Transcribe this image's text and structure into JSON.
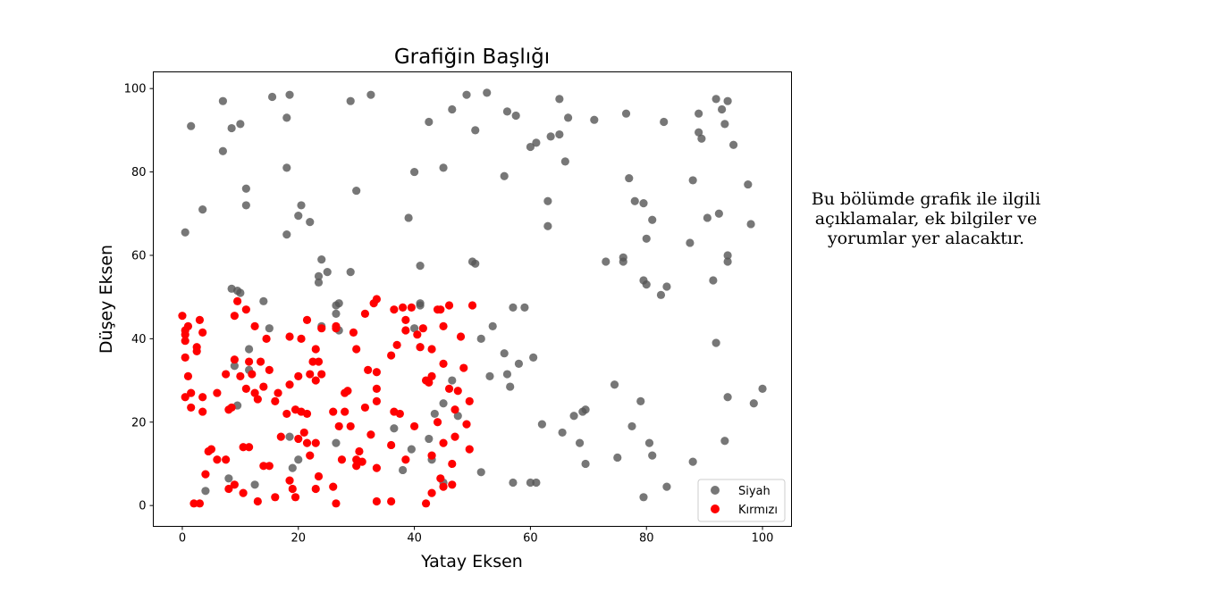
{
  "side_note": "Bu bölümde grafik ile ilgili\naçıklamalar, ek bilgiler ve\nyorumlar yer alacaktır.",
  "chart_data": {
    "type": "scatter",
    "title": "Grafiğin Başlığı",
    "xlabel": "Yatay Eksen",
    "ylabel": "Düşey Eksen",
    "xlim": [
      -5,
      105
    ],
    "ylim": [
      -5,
      104
    ],
    "xticks": [
      0,
      20,
      40,
      60,
      80,
      100
    ],
    "yticks": [
      0,
      20,
      40,
      60,
      80,
      100
    ],
    "grid": false,
    "legend_position": "lower-right",
    "series": [
      {
        "name": "Siyah",
        "color": "#555555",
        "points": [
          [
            7,
            97
          ],
          [
            15.5,
            98
          ],
          [
            18.5,
            98.5
          ],
          [
            29,
            97
          ],
          [
            32.5,
            98.5
          ],
          [
            49,
            98.5
          ],
          [
            52.5,
            99
          ],
          [
            65,
            97.5
          ],
          [
            92,
            97.5
          ],
          [
            94,
            97
          ],
          [
            1.5,
            91
          ],
          [
            10,
            91.5
          ],
          [
            8.5,
            90.5
          ],
          [
            18,
            93
          ],
          [
            42.5,
            92
          ],
          [
            46.5,
            95
          ],
          [
            56,
            94.5
          ],
          [
            57.5,
            93.5
          ],
          [
            66.5,
            93
          ],
          [
            71,
            92.5
          ],
          [
            76.5,
            94
          ],
          [
            83,
            92
          ],
          [
            89,
            94
          ],
          [
            93,
            95
          ],
          [
            93.5,
            91.5
          ],
          [
            50.5,
            90
          ],
          [
            61,
            87
          ],
          [
            63.5,
            88.5
          ],
          [
            65,
            89
          ],
          [
            89,
            89.5
          ],
          [
            89.5,
            88
          ],
          [
            95,
            86.5
          ],
          [
            7,
            85
          ],
          [
            18,
            81
          ],
          [
            40,
            80
          ],
          [
            45,
            81
          ],
          [
            55.5,
            79
          ],
          [
            60,
            86
          ],
          [
            66,
            82.5
          ],
          [
            77,
            78.5
          ],
          [
            88,
            78
          ],
          [
            97.5,
            77
          ],
          [
            11,
            76
          ],
          [
            30,
            75.5
          ],
          [
            78,
            73
          ],
          [
            79.5,
            72.5
          ],
          [
            63,
            73
          ],
          [
            92.5,
            70
          ],
          [
            11,
            72
          ],
          [
            20.5,
            72
          ],
          [
            3.5,
            71
          ],
          [
            20,
            69.5
          ],
          [
            22,
            68
          ],
          [
            39,
            69
          ],
          [
            63,
            67
          ],
          [
            81,
            68.5
          ],
          [
            90.5,
            69
          ],
          [
            98,
            67.5
          ],
          [
            0.5,
            65.5
          ],
          [
            18,
            65
          ],
          [
            80,
            64
          ],
          [
            87.5,
            63
          ],
          [
            24,
            59
          ],
          [
            25,
            56
          ],
          [
            23.5,
            55
          ],
          [
            23.5,
            53.5
          ],
          [
            29,
            56
          ],
          [
            41,
            57.5
          ],
          [
            50,
            58.5
          ],
          [
            50.5,
            58
          ],
          [
            73,
            58.5
          ],
          [
            76,
            58.5
          ],
          [
            76,
            59.5
          ],
          [
            94,
            60
          ],
          [
            94,
            58.5
          ],
          [
            79.5,
            54
          ],
          [
            80,
            53
          ],
          [
            82.5,
            50.5
          ],
          [
            83.5,
            52.5
          ],
          [
            91.5,
            54
          ],
          [
            8.5,
            52
          ],
          [
            9.5,
            51.5
          ],
          [
            10,
            51
          ],
          [
            14,
            49
          ],
          [
            27,
            48.5
          ],
          [
            26.5,
            48
          ],
          [
            26.5,
            46
          ],
          [
            41,
            48
          ],
          [
            41,
            48.5
          ],
          [
            57,
            47.5
          ],
          [
            59,
            47.5
          ],
          [
            15,
            42.5
          ],
          [
            24,
            43
          ],
          [
            27,
            42
          ],
          [
            40,
            42.5
          ],
          [
            41,
            38
          ],
          [
            53.5,
            43
          ],
          [
            51.5,
            40
          ],
          [
            55.5,
            36.5
          ],
          [
            60.5,
            35.5
          ],
          [
            11.5,
            37.5
          ],
          [
            9,
            33.5
          ],
          [
            11.5,
            32.5
          ],
          [
            58,
            34
          ],
          [
            56,
            31.5
          ],
          [
            53,
            31
          ],
          [
            46.5,
            30
          ],
          [
            56.5,
            28.5
          ],
          [
            74.5,
            29
          ],
          [
            92,
            39
          ],
          [
            9.5,
            24
          ],
          [
            45,
            24.5
          ],
          [
            43.5,
            22
          ],
          [
            47.5,
            21.5
          ],
          [
            62,
            19.5
          ],
          [
            65.5,
            17.5
          ],
          [
            67.5,
            21.5
          ],
          [
            69,
            22.5
          ],
          [
            69.5,
            23
          ],
          [
            79,
            25
          ],
          [
            94,
            26
          ],
          [
            98.5,
            24.5
          ],
          [
            100,
            28
          ],
          [
            36.5,
            18.5
          ],
          [
            42.5,
            16
          ],
          [
            39.5,
            13.5
          ],
          [
            38,
            8.5
          ],
          [
            43,
            11
          ],
          [
            45,
            5.5
          ],
          [
            51.5,
            8
          ],
          [
            57,
            5.5
          ],
          [
            60,
            5.5
          ],
          [
            61,
            5.5
          ],
          [
            68.5,
            15
          ],
          [
            69.5,
            10
          ],
          [
            75,
            11.5
          ],
          [
            77.5,
            19
          ],
          [
            80.5,
            15
          ],
          [
            81,
            12
          ],
          [
            83.5,
            4.5
          ],
          [
            88,
            10.5
          ],
          [
            79.5,
            2
          ],
          [
            93.5,
            15.5
          ],
          [
            4,
            3.5
          ],
          [
            8,
            6.5
          ],
          [
            12.5,
            5
          ],
          [
            19,
            9
          ],
          [
            18.5,
            16.5
          ],
          [
            20,
            11
          ],
          [
            26.5,
            15
          ]
        ]
      },
      {
        "name": "Kırmızı",
        "color": "#ff0000",
        "points": [
          [
            0,
            45.5
          ],
          [
            0.5,
            42
          ],
          [
            0.5,
            41
          ],
          [
            0.5,
            39.5
          ],
          [
            0.5,
            35.5
          ],
          [
            1,
            43
          ],
          [
            1,
            31
          ],
          [
            0.5,
            26
          ],
          [
            1.5,
            23.5
          ],
          [
            1.5,
            27
          ],
          [
            2,
            0.5
          ],
          [
            2.5,
            37
          ],
          [
            2.5,
            38
          ],
          [
            3,
            44.5
          ],
          [
            3.5,
            41.5
          ],
          [
            3.5,
            22.5
          ],
          [
            3.5,
            26
          ],
          [
            3,
            0.5
          ],
          [
            4,
            7.5
          ],
          [
            4.5,
            13
          ],
          [
            5,
            13.5
          ],
          [
            6,
            27
          ],
          [
            6,
            11
          ],
          [
            7.5,
            31.5
          ],
          [
            7.5,
            11
          ],
          [
            8,
            23
          ],
          [
            8.5,
            23.5
          ],
          [
            8,
            4
          ],
          [
            9,
            35
          ],
          [
            9,
            45.5
          ],
          [
            9.5,
            49
          ],
          [
            9,
            5
          ],
          [
            10,
            31
          ],
          [
            10.5,
            14
          ],
          [
            10.5,
            3
          ],
          [
            11,
            47
          ],
          [
            11,
            28
          ],
          [
            11.5,
            34.5
          ],
          [
            11.5,
            14
          ],
          [
            12,
            31.5
          ],
          [
            12.5,
            43
          ],
          [
            12.5,
            27
          ],
          [
            13,
            25.5
          ],
          [
            13,
            1
          ],
          [
            13.5,
            34.5
          ],
          [
            14,
            28.5
          ],
          [
            14,
            9.5
          ],
          [
            14.5,
            40
          ],
          [
            15,
            9.5
          ],
          [
            15,
            32.5
          ],
          [
            16,
            25
          ],
          [
            16,
            2
          ],
          [
            16.5,
            27
          ],
          [
            17,
            16.5
          ],
          [
            18,
            22
          ],
          [
            18.5,
            40.5
          ],
          [
            18.5,
            29
          ],
          [
            18.5,
            6
          ],
          [
            19,
            4
          ],
          [
            19.5,
            2
          ],
          [
            19.5,
            23
          ],
          [
            20,
            16
          ],
          [
            20,
            31
          ],
          [
            20.5,
            40
          ],
          [
            20.5,
            22.5
          ],
          [
            21,
            17.5
          ],
          [
            21.5,
            15
          ],
          [
            21.5,
            22
          ],
          [
            21.5,
            44.5
          ],
          [
            22,
            31.5
          ],
          [
            22,
            12
          ],
          [
            22.5,
            34.5
          ],
          [
            23,
            37.5
          ],
          [
            23,
            30
          ],
          [
            23,
            15
          ],
          [
            23,
            4
          ],
          [
            23.5,
            34.5
          ],
          [
            23.5,
            7
          ],
          [
            24,
            42.5
          ],
          [
            24,
            31.5
          ],
          [
            26,
            22.5
          ],
          [
            26,
            4.5
          ],
          [
            26.5,
            43
          ],
          [
            26.5,
            42.5
          ],
          [
            26.5,
            0.5
          ],
          [
            27,
            19
          ],
          [
            27.5,
            11
          ],
          [
            28,
            27
          ],
          [
            28,
            22.5
          ],
          [
            28.5,
            27.5
          ],
          [
            29,
            19
          ],
          [
            29.5,
            41.5
          ],
          [
            30,
            37.5
          ],
          [
            30,
            11
          ],
          [
            30,
            9.5
          ],
          [
            30.5,
            13
          ],
          [
            31,
            10.5
          ],
          [
            31.5,
            46
          ],
          [
            31.5,
            23.5
          ],
          [
            32,
            32.5
          ],
          [
            32.5,
            17
          ],
          [
            33,
            48.5
          ],
          [
            33.5,
            49.5
          ],
          [
            33.5,
            32
          ],
          [
            33.5,
            28
          ],
          [
            33.5,
            25
          ],
          [
            33.5,
            9
          ],
          [
            33.5,
            1
          ],
          [
            36,
            36
          ],
          [
            36,
            14.5
          ],
          [
            36,
            1
          ],
          [
            36.5,
            47
          ],
          [
            36.5,
            22.5
          ],
          [
            37,
            38.5
          ],
          [
            37.5,
            22
          ],
          [
            38,
            47.5
          ],
          [
            38.5,
            44.5
          ],
          [
            38.5,
            42
          ],
          [
            38.5,
            11
          ],
          [
            39.5,
            47.5
          ],
          [
            40,
            19
          ],
          [
            40.5,
            41
          ],
          [
            41,
            38
          ],
          [
            41.5,
            42.5
          ],
          [
            42,
            30
          ],
          [
            42,
            0.5
          ],
          [
            42.5,
            29.5
          ],
          [
            43,
            31
          ],
          [
            43,
            37.5
          ],
          [
            43,
            12
          ],
          [
            43,
            3
          ],
          [
            44,
            47
          ],
          [
            44,
            20
          ],
          [
            44.5,
            47
          ],
          [
            44.5,
            6.5
          ],
          [
            45,
            15
          ],
          [
            45,
            43
          ],
          [
            45,
            34
          ],
          [
            45,
            4.5
          ],
          [
            46,
            28
          ],
          [
            46,
            48
          ],
          [
            46.5,
            10
          ],
          [
            46.5,
            5
          ],
          [
            47,
            23
          ],
          [
            47,
            16.5
          ],
          [
            47.5,
            27.5
          ],
          [
            48,
            40.5
          ],
          [
            48.5,
            33
          ],
          [
            49,
            19.5
          ],
          [
            49.5,
            25
          ],
          [
            49.5,
            13.5
          ],
          [
            50,
            48
          ]
        ]
      }
    ]
  }
}
